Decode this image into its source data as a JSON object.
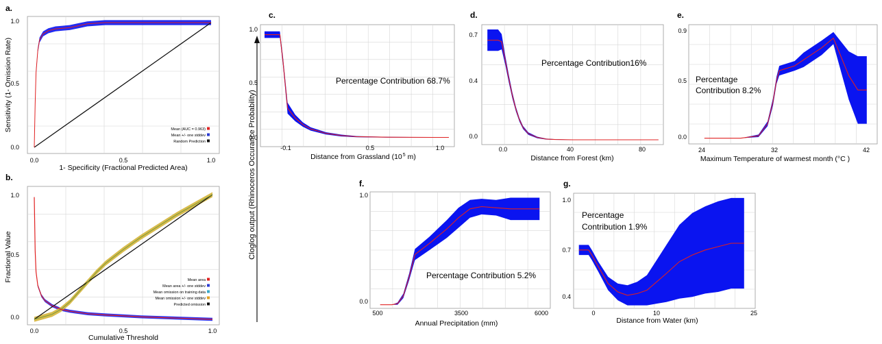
{
  "shared_ylabel": "Cloglog output (Rhinoceros Occurance Probability)",
  "panels": {
    "a": {
      "letter": "a.",
      "ylabel": "Sensitivity (1- Omission Rate)",
      "xlabel": "1- Specificity (Fractional Predicted  Area)",
      "xticks": [
        "0.0",
        "0.5",
        "1.0"
      ],
      "yticks": [
        "0.0",
        "0.5",
        "1.0"
      ],
      "legend": [
        {
          "label": "Mean (AUC = 0.963)",
          "color": "#e02020"
        },
        {
          "label": "Mean +/- one stddev",
          "color": "#2b3bd1"
        },
        {
          "label": "Random Prediction",
          "color": "#111111"
        }
      ]
    },
    "b": {
      "letter": "b.",
      "ylabel": "Fractional Value",
      "xlabel": "Cumulative Threshold",
      "xticks": [
        "0.0",
        "0.5",
        "1.0"
      ],
      "yticks": [
        "0.0",
        "0.5",
        "1.0"
      ],
      "legend": [
        {
          "label": "Mean area",
          "color": "#e02020"
        },
        {
          "label": "Mean area +/- one stddev",
          "color": "#2b3bd1"
        },
        {
          "label": "Mean omission on training data",
          "color": "#3aa8c8"
        },
        {
          "label": "Mean omission +/- one stddev",
          "color": "#e0a020"
        },
        {
          "label": "Predicted omission",
          "color": "#111111"
        }
      ]
    },
    "c": {
      "letter": "c.",
      "xlabel_main": "Distance from Grassland (10",
      "xlabel_sup": "5",
      "xlabel_tail": " m)",
      "xticks": [
        "-0.1",
        "0.5",
        "1.0"
      ],
      "yticks": [
        "0.0",
        "0.5",
        "1.0"
      ],
      "annotation": "Percentage Contribution 68.7%"
    },
    "d": {
      "letter": "d.",
      "xlabel": "Distance from Forest (km)",
      "xticks": [
        "0.0",
        "40",
        "80"
      ],
      "yticks": [
        "0.0",
        "0.4",
        "0.7"
      ],
      "annotation": "Percentage Contribution16%"
    },
    "e": {
      "letter": "e.",
      "xlabel": "Maximum Temperature of warmest month (°C )",
      "xticks": [
        "24",
        "32",
        "42"
      ],
      "yticks": [
        "0.0",
        "0.5",
        "0.9"
      ],
      "annotation_lines": [
        "Percentage",
        "Contribution 8.2%"
      ]
    },
    "f": {
      "letter": "f.",
      "xlabel": "Annual Precipitation (mm)",
      "xticks": [
        "500",
        "3500",
        "6000"
      ],
      "yticks": [
        "0.0",
        "1.0"
      ],
      "annotation": "Percentage Contribution 5.2%"
    },
    "g": {
      "letter": "g.",
      "xlabel": "Distance from Water (km)",
      "xticks": [
        "0",
        "10",
        "25"
      ],
      "yticks": [
        "0.4",
        "0.7",
        "1.0"
      ],
      "annotation_lines": [
        "Percentage",
        "Contribution 1.9%"
      ]
    }
  },
  "colors": {
    "mean_line": "#e02020",
    "stddev_band": "#0a14f0",
    "random_line": "#111111",
    "omission_band": "#d4b43a",
    "omission_mean": "#3aa8c8",
    "grid": "#d6d6d6"
  },
  "chart_data": [
    {
      "id": "a",
      "type": "line",
      "xlim": [
        0,
        1
      ],
      "ylim": [
        0,
        1
      ],
      "series": [
        {
          "name": "Mean (AUC = 0.963)",
          "x": [
            0,
            0.005,
            0.01,
            0.02,
            0.03,
            0.05,
            0.08,
            0.12,
            0.16,
            0.2,
            0.25,
            0.3,
            0.4,
            0.6,
            0.8,
            1.0
          ],
          "y": [
            0,
            0.35,
            0.6,
            0.78,
            0.86,
            0.91,
            0.935,
            0.95,
            0.955,
            0.96,
            0.975,
            0.99,
            1.0,
            1.0,
            1.0,
            1.0
          ]
        },
        {
          "name": "Mean +/- one stddev",
          "x": [
            0,
            0.005,
            0.01,
            0.02,
            0.03,
            0.05,
            0.08,
            0.12,
            0.16,
            0.2,
            0.25,
            0.3,
            0.4,
            0.6,
            0.8,
            1.0
          ],
          "band": 0.02
        },
        {
          "name": "Random Prediction",
          "x": [
            0,
            1
          ],
          "y": [
            0,
            1
          ]
        }
      ]
    },
    {
      "id": "b",
      "type": "line",
      "xlim": [
        0,
        1
      ],
      "ylim": [
        0,
        1
      ],
      "series": [
        {
          "name": "Mean area",
          "x": [
            0,
            0.005,
            0.01,
            0.02,
            0.04,
            0.06,
            0.1,
            0.15,
            0.2,
            0.3,
            0.4,
            0.5,
            0.6,
            0.8,
            1.0
          ],
          "y": [
            0.98,
            0.55,
            0.38,
            0.27,
            0.19,
            0.15,
            0.11,
            0.08,
            0.065,
            0.045,
            0.035,
            0.028,
            0.02,
            0.01,
            0
          ]
        },
        {
          "name": "Mean omission on training data",
          "x": [
            0,
            0.05,
            0.1,
            0.15,
            0.2,
            0.25,
            0.3,
            0.35,
            0.4,
            0.5,
            0.6,
            0.7,
            0.8,
            0.9,
            1.0
          ],
          "y": [
            0,
            0.02,
            0.04,
            0.08,
            0.14,
            0.22,
            0.3,
            0.38,
            0.45,
            0.56,
            0.66,
            0.75,
            0.84,
            0.92,
            1.0
          ]
        },
        {
          "name": "Predicted omission",
          "x": [
            0,
            1
          ],
          "y": [
            0,
            1
          ]
        }
      ]
    },
    {
      "id": "c",
      "type": "line",
      "xlim": [
        -0.1,
        1.1
      ],
      "ylim": [
        0,
        1
      ],
      "x": [
        -0.1,
        -0.05,
        0.0,
        0.02,
        0.05,
        0.1,
        0.15,
        0.2,
        0.3,
        0.4,
        0.5,
        0.7,
        1.0,
        1.1
      ],
      "y": [
        0.94,
        0.94,
        0.94,
        0.7,
        0.27,
        0.18,
        0.12,
        0.08,
        0.04,
        0.02,
        0.01,
        0.005,
        0.003,
        0.003
      ],
      "band": [
        0.03,
        0.03,
        0.03,
        0.04,
        0.05,
        0.03,
        0.02,
        0.015,
        0.01,
        0.008,
        0.005,
        0.003,
        0.002,
        0.002
      ]
    },
    {
      "id": "d",
      "type": "line",
      "xlim": [
        -10,
        90
      ],
      "ylim": [
        0,
        0.72
      ],
      "x": [
        -8,
        -5,
        -2,
        0,
        2,
        4,
        6,
        8,
        10,
        12,
        15,
        20,
        25,
        30,
        40,
        60,
        88
      ],
      "y": [
        0.65,
        0.65,
        0.65,
        0.64,
        0.52,
        0.4,
        0.29,
        0.2,
        0.13,
        0.08,
        0.04,
        0.015,
        0.005,
        0.002,
        0.0,
        0.0,
        0.0
      ],
      "band": [
        0.07,
        0.07,
        0.07,
        0.05,
        0.03,
        0.025,
        0.02,
        0.015,
        0.012,
        0.01,
        0.008,
        0.005,
        0.003,
        0.002,
        0.001,
        0.001,
        0.001
      ]
    },
    {
      "id": "e",
      "type": "line",
      "xlim": [
        22.5,
        43
      ],
      "ylim": [
        -0.03,
        0.93
      ],
      "x": [
        24,
        28,
        30,
        31,
        31.6,
        32,
        32.3,
        34,
        35,
        37,
        38.3,
        40,
        41,
        42
      ],
      "y": [
        0.0,
        0.0,
        0.02,
        0.12,
        0.3,
        0.48,
        0.56,
        0.6,
        0.65,
        0.75,
        0.83,
        0.52,
        0.4,
        0.4
      ],
      "band": [
        0.0,
        0.0,
        0.01,
        0.02,
        0.03,
        0.03,
        0.04,
        0.04,
        0.06,
        0.06,
        0.05,
        0.2,
        0.28,
        0.28
      ]
    },
    {
      "id": "f",
      "type": "line",
      "xlim": [
        200,
        6300
      ],
      "ylim": [
        -0.02,
        1.0
      ],
      "x": [
        500,
        900,
        1100,
        1300,
        1500,
        1700,
        2200,
        2800,
        3200,
        3600,
        4000,
        4500,
        5000,
        6000
      ],
      "y": [
        0.0,
        0.0,
        0.01,
        0.08,
        0.25,
        0.45,
        0.55,
        0.68,
        0.78,
        0.86,
        0.88,
        0.87,
        0.86,
        0.86
      ],
      "band": [
        0.0,
        0.0,
        0.01,
        0.02,
        0.03,
        0.05,
        0.06,
        0.08,
        0.09,
        0.08,
        0.07,
        0.07,
        0.1,
        0.1
      ]
    },
    {
      "id": "g",
      "type": "line",
      "xlim": [
        -2,
        25.5
      ],
      "ylim": [
        0.35,
        1.02
      ],
      "x": [
        -1.5,
        0,
        0.5,
        1.5,
        3,
        4.5,
        6,
        7.5,
        9,
        10.5,
        12,
        14,
        16,
        18,
        20,
        22,
        24
      ],
      "y": [
        0.69,
        0.69,
        0.66,
        0.59,
        0.49,
        0.44,
        0.42,
        0.43,
        0.45,
        0.5,
        0.55,
        0.62,
        0.66,
        0.69,
        0.71,
        0.73,
        0.73
      ],
      "band": [
        0.03,
        0.03,
        0.03,
        0.03,
        0.04,
        0.05,
        0.06,
        0.07,
        0.09,
        0.13,
        0.17,
        0.22,
        0.25,
        0.26,
        0.27,
        0.27,
        0.27
      ]
    }
  ]
}
